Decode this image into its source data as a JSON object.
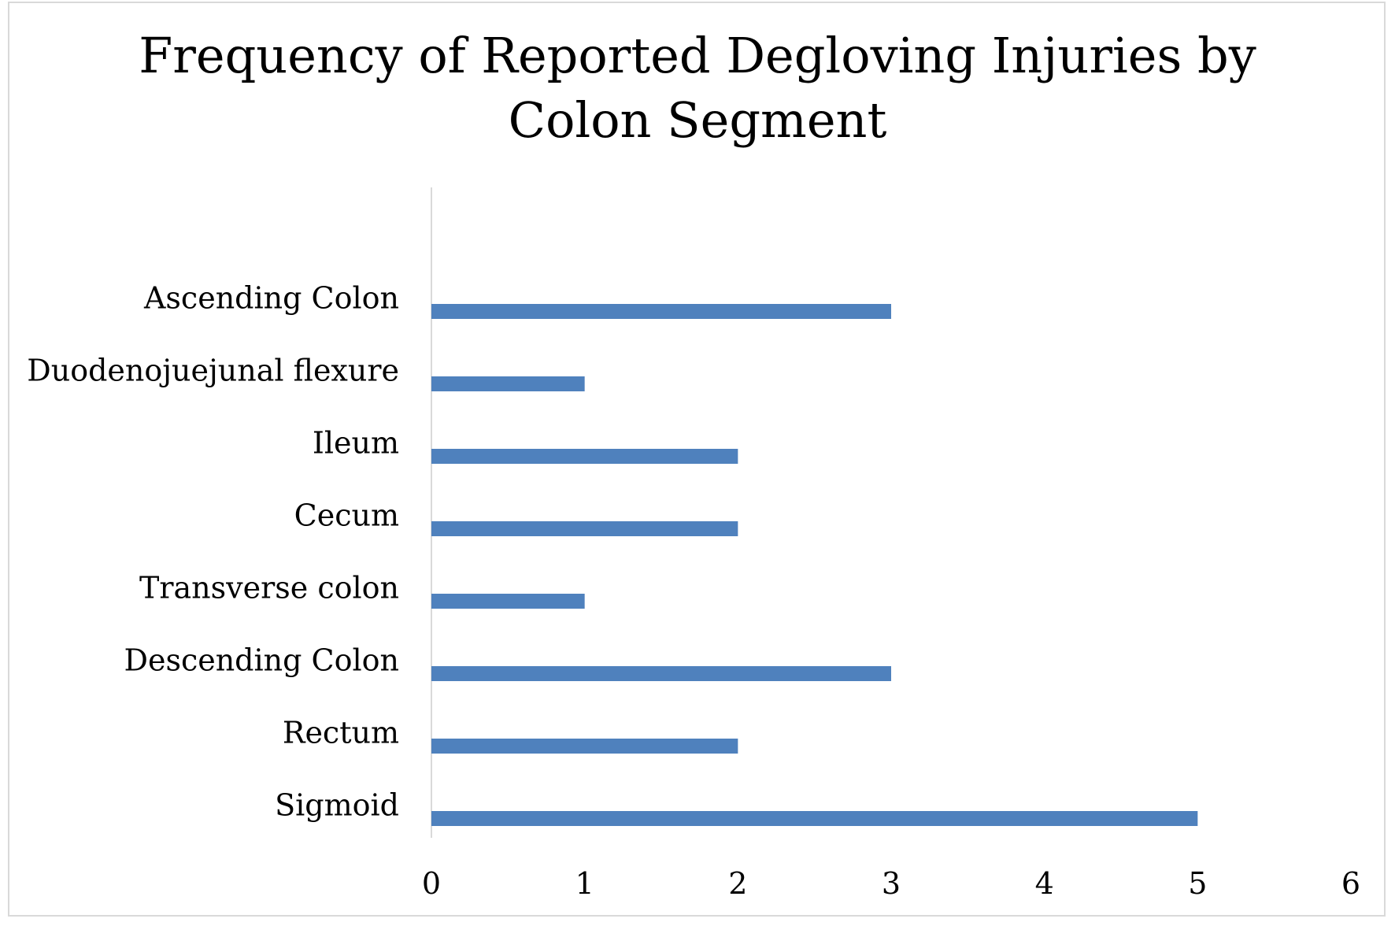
{
  "chart_data": {
    "type": "bar",
    "orientation": "horizontal",
    "title": "Frequency of Reported Degloving Injuries by\nColon Segment",
    "categories": [
      "Ascending Colon",
      "Duodenojuejunal flexure",
      "Ileum",
      "Cecum",
      "Transverse colon",
      "Descending Colon",
      "Rectum",
      "Sigmoid"
    ],
    "values": [
      3,
      1,
      2,
      2,
      1,
      3,
      2,
      5
    ],
    "xlim": [
      0,
      6
    ],
    "xticks": [
      "0",
      "1",
      "2",
      "3",
      "4",
      "5",
      "6"
    ],
    "grid": false,
    "bar_color": "#4f81bd"
  }
}
